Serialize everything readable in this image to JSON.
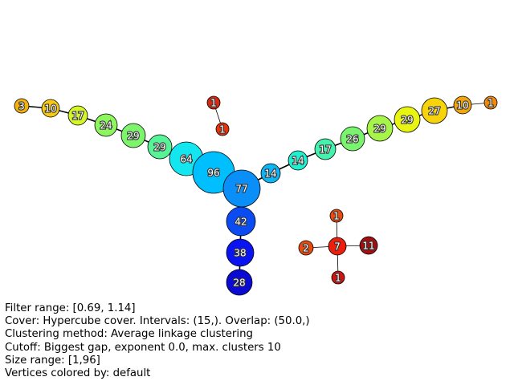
{
  "graph": {
    "nodes": [
      {
        "id": "n3",
        "label": "3",
        "color": "#f3b10a"
      },
      {
        "id": "n10a",
        "label": "10",
        "color": "#f7c90f"
      },
      {
        "id": "n17a",
        "label": "17",
        "color": "#d4f52a"
      },
      {
        "id": "n24",
        "label": "24",
        "color": "#8df55d"
      },
      {
        "id": "n29a",
        "label": "29",
        "color": "#7df46c"
      },
      {
        "id": "n29b",
        "label": "29",
        "color": "#57f497"
      },
      {
        "id": "n64",
        "label": "64",
        "color": "#14e6f0"
      },
      {
        "id": "n96",
        "label": "96",
        "color": "#00bfff"
      },
      {
        "id": "n77",
        "label": "77",
        "color": "#0a8ef7"
      },
      {
        "id": "n14a",
        "label": "14",
        "color": "#0fb4f5"
      },
      {
        "id": "n14b",
        "label": "14",
        "color": "#21f0d0"
      },
      {
        "id": "n17b",
        "label": "17",
        "color": "#44f2ae"
      },
      {
        "id": "n26",
        "label": "26",
        "color": "#7af46e"
      },
      {
        "id": "n29c",
        "label": "29",
        "color": "#a6f548"
      },
      {
        "id": "n29d",
        "label": "29",
        "color": "#e8f512"
      },
      {
        "id": "n27",
        "label": "27",
        "color": "#f7d30c"
      },
      {
        "id": "n10b",
        "label": "10",
        "color": "#f2a60c"
      },
      {
        "id": "n1e",
        "label": "1",
        "color": "#f08a08"
      },
      {
        "id": "n42",
        "label": "42",
        "color": "#0a4cf2"
      },
      {
        "id": "n38",
        "label": "38",
        "color": "#0a14f0"
      },
      {
        "id": "n28",
        "label": "28",
        "color": "#0a0ad2"
      },
      {
        "id": "n1a",
        "label": "1",
        "color": "#d8280e"
      },
      {
        "id": "n1b",
        "label": "1",
        "color": "#e8320c"
      },
      {
        "id": "n1c",
        "label": "1",
        "color": "#ea4a0e"
      },
      {
        "id": "n2",
        "label": "2",
        "color": "#ea4a10"
      },
      {
        "id": "n7",
        "label": "7",
        "color": "#ee1e0c"
      },
      {
        "id": "n11",
        "label": "11",
        "color": "#a01010"
      },
      {
        "id": "n1d",
        "label": "1",
        "color": "#d01410"
      }
    ],
    "edges": [
      [
        "n3",
        "n10a"
      ],
      [
        "n10a",
        "n17a"
      ],
      [
        "n17a",
        "n24"
      ],
      [
        "n24",
        "n29a"
      ],
      [
        "n29a",
        "n29b"
      ],
      [
        "n29b",
        "n64"
      ],
      [
        "n64",
        "n96"
      ],
      [
        "n96",
        "n77"
      ],
      [
        "n77",
        "n14a"
      ],
      [
        "n14a",
        "n14b"
      ],
      [
        "n14b",
        "n17b"
      ],
      [
        "n17b",
        "n26"
      ],
      [
        "n26",
        "n29c"
      ],
      [
        "n29c",
        "n29d"
      ],
      [
        "n29d",
        "n27"
      ],
      [
        "n27",
        "n10b"
      ],
      [
        "n10b",
        "n1e"
      ],
      [
        "n77",
        "n42"
      ],
      [
        "n42",
        "n38"
      ],
      [
        "n38",
        "n28"
      ],
      [
        "n1a",
        "n1b"
      ],
      [
        "n1c",
        "n7"
      ],
      [
        "n2",
        "n7"
      ],
      [
        "n7",
        "n11"
      ],
      [
        "n7",
        "n1d"
      ]
    ]
  },
  "info": {
    "filter_range": "Filter range: [0.69, 1.14]",
    "cover": "Cover: Hypercube cover. Intervals: (15,). Overlap: (50.0,)",
    "clustering": "Clustering method: Average linkage clustering",
    "cutoff": "Cutoff: Biggest gap, exponent 0.0, max. clusters 10",
    "size_range": "Size range: [1,96]",
    "coloring": "Vertices colored by: default"
  }
}
